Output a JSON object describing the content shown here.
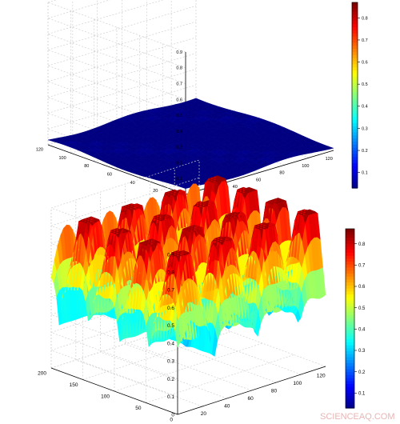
{
  "chart_data": [
    {
      "type": "surface",
      "colormap": "jet",
      "grid": true,
      "x_ticks": [
        "20",
        "40",
        "60",
        "80",
        "100",
        "120"
      ],
      "y_ticks": [
        "0",
        "20",
        "40",
        "60",
        "80",
        "100",
        "120"
      ],
      "z_ticks": [
        "0",
        "0.1",
        "0.2",
        "0.3",
        "0.4",
        "0.5",
        "0.6",
        "0.7",
        "0.8",
        "0.9"
      ],
      "colorbar_ticks": [
        "0.1",
        "0.2",
        "0.3",
        "0.4",
        "0.5",
        "0.6",
        "0.7",
        "0.8"
      ],
      "zlim": [
        0,
        0.9
      ],
      "surface": {
        "pattern": "nearly flat, low-amplitude ripples",
        "z_min": 0.0,
        "z_max": 0.05,
        "wavelength": 20
      }
    },
    {
      "type": "surface",
      "colormap": "jet",
      "grid": true,
      "x_ticks": [
        "20",
        "40",
        "60",
        "80",
        "100",
        "120"
      ],
      "y_ticks": [
        "0",
        "50",
        "100",
        "150",
        "200"
      ],
      "z_ticks": [
        "0",
        "0.1",
        "0.2",
        "0.3",
        "0.4",
        "0.5",
        "0.6",
        "0.7",
        "0.8",
        "0.9"
      ],
      "colorbar_ticks": [
        "0.1",
        "0.2",
        "0.3",
        "0.4",
        "0.5",
        "0.6",
        "0.7",
        "0.8"
      ],
      "zlim": [
        0,
        0.9
      ],
      "surface": {
        "pattern": "periodic hills and deep wells",
        "z_min": 0.02,
        "z_max": 0.85,
        "wavelength": 40
      }
    }
  ],
  "watermark": "SCIENCEAQ.COM"
}
